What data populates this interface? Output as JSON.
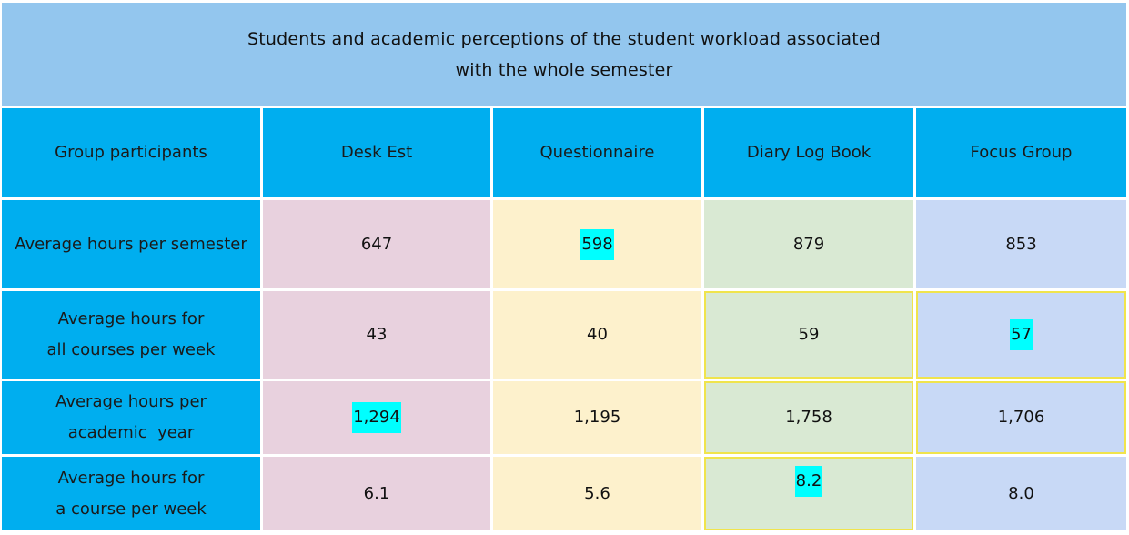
{
  "chart_data": {
    "type": "table",
    "title_line1": "Students and academic perceptions of the student workload associated",
    "title_line2": "with the whole semester",
    "columns": [
      "Group participants",
      "Desk Est",
      "Questionnaire",
      "Diary Log Book",
      "Focus Group"
    ],
    "rows": [
      {
        "label_line1": "Average hours per semester",
        "label_line2": "",
        "values": [
          "647",
          "598",
          "879",
          "853"
        ]
      },
      {
        "label_line1": "Average hours for",
        "label_line2": "all courses per week",
        "values": [
          "43",
          "40",
          "59",
          "57"
        ]
      },
      {
        "label_line1": "Average hours per",
        "label_line2": "academic  year",
        "values": [
          "1,294",
          "1,195",
          "1,758",
          "1,706"
        ]
      },
      {
        "label_line1": "Average hours for",
        "label_line2": "a course per week",
        "values": [
          "6.1",
          "5.6",
          "8.2",
          "8.0"
        ]
      }
    ]
  },
  "colors": {
    "title_bg": "#93c6ee",
    "header_bg": "#00aeef",
    "desk_est_bg": "#e8d1de",
    "questionnaire_bg": "#fdf1cc",
    "diary_bg": "#d9e9d3",
    "focus_bg": "#c8d9f6",
    "highlight": "#00ffff"
  }
}
